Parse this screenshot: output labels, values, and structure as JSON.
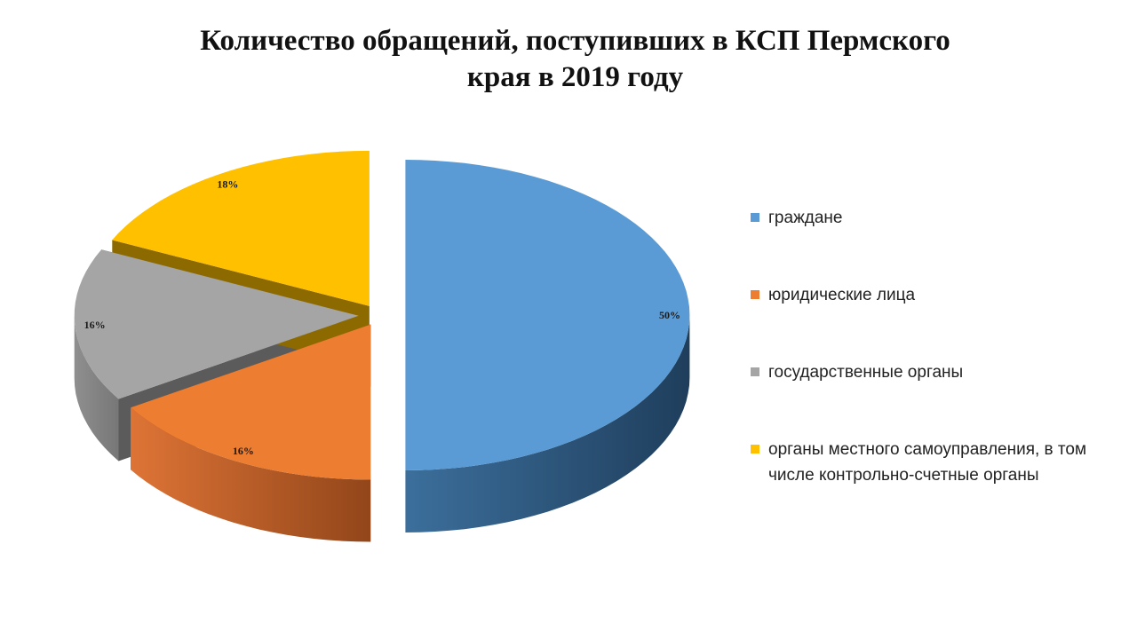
{
  "page": {
    "title_line1": "Количество обращений, поступивших в КСП Пермского",
    "title_line2": "края в 2019 году"
  },
  "chart_data": {
    "type": "pie",
    "title": "Количество обращений, поступивших в КСП Пермского края в 2019 году",
    "legend_position": "right",
    "exploded": true,
    "three_d": true,
    "slices": [
      {
        "name": "граждане",
        "value": 50,
        "label": "50%",
        "color": "#5B9BD5"
      },
      {
        "name": "юридические лица",
        "value": 16,
        "label": "16%",
        "color": "#ED7D31"
      },
      {
        "name": "государственные органы",
        "value": 16,
        "label": "16%",
        "color": "#A5A5A5"
      },
      {
        "name": "органы местного самоуправления, в том числе контрольно-счетные органы",
        "value": 18,
        "label": "18%",
        "color": "#FFC000"
      }
    ]
  }
}
